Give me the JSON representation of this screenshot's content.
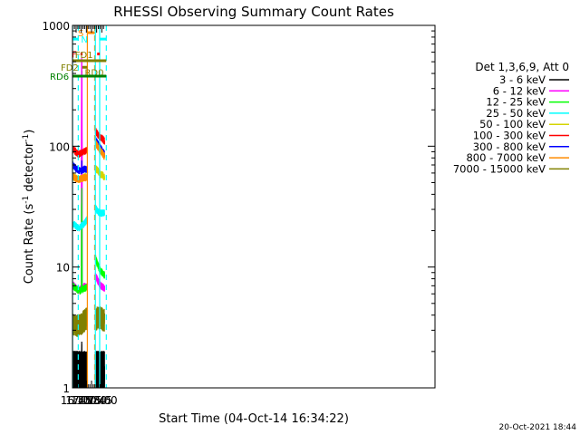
{
  "chart_data": {
    "type": "line",
    "title": "RHESSI Observing Summary Count Rates",
    "xlabel": "Start Time (04-Oct-14 16:34:22)",
    "ylabel_main": "Count Rate (s",
    "ylabel_sup1": "-1",
    "ylabel_mid": " detector",
    "ylabel_sup2": "-1",
    "ylabel_end": ")",
    "yscale": "log",
    "ylim": [
      1,
      1000
    ],
    "xlim_min": [
      34.4,
      1093.5
    ],
    "x_ticks": [
      {
        "value": 45,
        "label": "16:45"
      },
      {
        "value": 60,
        "label": "17:00"
      },
      {
        "value": 75,
        "label": "17:15"
      },
      {
        "value": 90,
        "label": "17:30"
      },
      {
        "value": 105,
        "label": "17:45"
      },
      {
        "value": 120,
        "label": "18:00"
      }
    ],
    "y_ticks": [
      {
        "value": 1,
        "label": "1"
      },
      {
        "value": 10,
        "label": "10"
      },
      {
        "value": 100,
        "label": "100"
      },
      {
        "value": 1000,
        "label": "1000"
      }
    ],
    "legend_header": "Det 1,3,6,9, Att 0",
    "series": [
      {
        "name": "3 - 6 keV",
        "color": "#000000",
        "segA": [
          1.5,
          1.5,
          1.4,
          1.5,
          1.6,
          1.5
        ],
        "segB": [
          1.6,
          1.5,
          1.5,
          1.6,
          1.5
        ],
        "flare": 3
      },
      {
        "name": "6 - 12 keV",
        "color": "#ff00ff",
        "segA": [
          7.2,
          6.8,
          6.4,
          6.6,
          7.0,
          6.8
        ],
        "segB": [
          8.5,
          7.8,
          7.2,
          6.9,
          6.6
        ],
        "flare": 800
      },
      {
        "name": "12 - 25 keV",
        "color": "#00ff00",
        "segA": [
          7.0,
          6.7,
          6.4,
          6.5,
          6.7,
          6.8
        ],
        "segB": [
          12.0,
          10.5,
          9.5,
          9.0,
          8.6
        ],
        "flare": 60
      },
      {
        "name": "25 - 50 keV",
        "color": "#00ffff",
        "segA": [
          23,
          22,
          21,
          22,
          23,
          25
        ],
        "segB": [
          31,
          29,
          28,
          28,
          28
        ],
        "flare": 30
      },
      {
        "name": "50 - 100 keV",
        "color": "#d4d400",
        "segA": [
          56,
          55,
          53,
          54,
          56,
          57
        ],
        "segB": [
          66,
          63,
          59,
          58,
          55
        ],
        "flare": 70
      },
      {
        "name": "100 - 300 keV",
        "color": "#ff0000",
        "segA": [
          95,
          90,
          86,
          88,
          91,
          93
        ],
        "segB": [
          135,
          126,
          118,
          116,
          110
        ],
        "flare": 110
      },
      {
        "name": "300 - 800 keV",
        "color": "#0000ff",
        "segA": [
          70,
          66,
          63,
          63,
          65,
          64
        ],
        "segB": [
          115,
          106,
          98,
          92,
          86
        ],
        "flare": 80
      },
      {
        "name": "800 - 7000 keV",
        "color": "#ff8c00",
        "segA": [
          57,
          54,
          53,
          54,
          55,
          55
        ],
        "segB": [
          108,
          100,
          93,
          88,
          82
        ],
        "flare": 65
      },
      {
        "name": "7000 - 15000 keV",
        "color": "#808000",
        "segA": [
          3.3,
          3.3,
          3.3,
          3.4,
          3.6,
          3.8
        ],
        "segB": [
          3.6,
          3.8,
          3.8,
          3.7,
          3.6
        ],
        "flare": 4
      }
    ],
    "segA_range": [
      35,
      78
    ],
    "segB_range": [
      101,
      128
    ],
    "vlines": [
      {
        "x": 34.6,
        "style": "solid",
        "color": "#00ffff"
      },
      {
        "x": 51.2,
        "style": "dashed",
        "color": "#00ffff"
      },
      {
        "x": 77.8,
        "style": "solid",
        "color": "#ff8c00"
      },
      {
        "x": 99.2,
        "style": "dashed",
        "color": "#ff8c00"
      },
      {
        "x": 101.3,
        "style": "solid",
        "color": "#00ffff"
      },
      {
        "x": 113.8,
        "style": "solid",
        "color": "#00ffff"
      },
      {
        "x": 133.2,
        "style": "dashed",
        "color": "#00ffff"
      }
    ],
    "flag_bars": [
      {
        "label": "N",
        "color": "#00ffff",
        "y": 770,
        "x_start": 34.6,
        "x_end": 51.2,
        "label_side": "end"
      },
      {
        "label": "",
        "color": "#00ffff",
        "y": 770,
        "x_start": 113.8,
        "x_end": 133.2,
        "label_side": "none"
      },
      {
        "label": "S",
        "color": "#ff8c00",
        "y": 870,
        "x_start": 77.8,
        "x_end": 99.2,
        "label_side": "start"
      },
      {
        "label": "F",
        "color": "#ff0000",
        "y": 580,
        "x_start": 57.8,
        "x_end": 63.8,
        "label_side": "start"
      },
      {
        "label": "",
        "color": "#ff0000",
        "y": 580,
        "x_start": 106.5,
        "x_end": 114.2,
        "label_side": "none"
      },
      {
        "label": "FD1",
        "color": "#808000",
        "y": 510,
        "x_start": 34.6,
        "x_end": 133.2,
        "label_side": "mid"
      },
      {
        "label": "FD2",
        "color": "#808000",
        "y": 450,
        "x_start": 63.0,
        "x_end": 77.5,
        "label_side": "start"
      },
      {
        "label": "RD0",
        "color": "#808000",
        "y": 410,
        "x_start": 61.5,
        "x_end": 62.2,
        "label_side": "end"
      },
      {
        "label": "RD6",
        "color": "#008000",
        "y": 380,
        "x_start": 34.6,
        "x_end": 133.2,
        "label_side": "start"
      }
    ],
    "timestamp": "20-Oct-2021 18:44"
  }
}
